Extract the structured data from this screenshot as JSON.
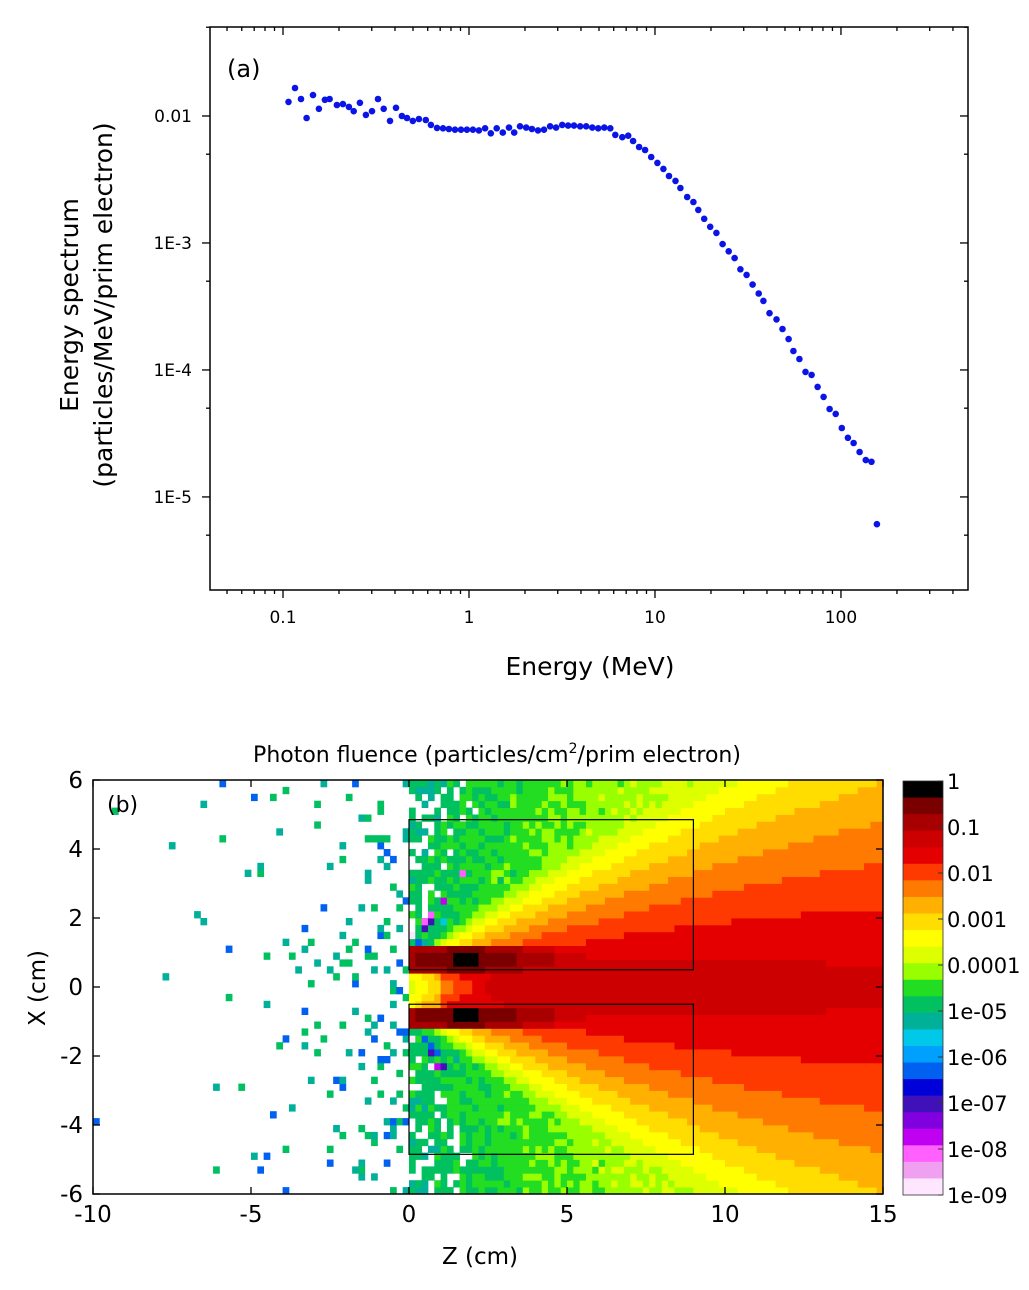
{
  "chart_data": [
    {
      "type": "scatter",
      "panel_label": "(a)",
      "xlabel": "Energy (MeV)",
      "ylabel_line1": "Energy spectrum",
      "ylabel_line2": "(particles/MeV/prim electron)",
      "xscale": "log",
      "yscale": "log",
      "xlim": [
        0.0405,
        482
      ],
      "ylim": [
        1.85e-06,
        0.0502
      ],
      "grid": false,
      "marker_color": "#0a14e6",
      "xticks": [
        {
          "value": 0.1,
          "label": "0.1"
        },
        {
          "value": 1,
          "label": "1"
        },
        {
          "value": 10,
          "label": "10"
        },
        {
          "value": 100,
          "label": "100"
        }
      ],
      "yticks": [
        {
          "value": 0.01,
          "label": "0.01"
        },
        {
          "value": 0.001,
          "label": "1E-3"
        },
        {
          "value": 0.0001,
          "label": "1E-4"
        },
        {
          "value": 1e-05,
          "label": "1E-5"
        }
      ],
      "points": [
        [
          0.107,
          0.0129
        ],
        [
          0.116,
          0.0166
        ],
        [
          0.125,
          0.0136
        ],
        [
          0.134,
          0.00964
        ],
        [
          0.145,
          0.0146
        ],
        [
          0.156,
          0.0114
        ],
        [
          0.168,
          0.0134
        ],
        [
          0.178,
          0.0136
        ],
        [
          0.195,
          0.0122
        ],
        [
          0.21,
          0.0124
        ],
        [
          0.226,
          0.0118
        ],
        [
          0.24,
          0.0109
        ],
        [
          0.259,
          0.0127
        ],
        [
          0.279,
          0.0102
        ],
        [
          0.301,
          0.0109
        ],
        [
          0.324,
          0.0136
        ],
        [
          0.348,
          0.0114
        ],
        [
          0.376,
          0.00914
        ],
        [
          0.405,
          0.0116
        ],
        [
          0.436,
          0.01
        ],
        [
          0.464,
          0.00964
        ],
        [
          0.499,
          0.00914
        ],
        [
          0.538,
          0.00947
        ],
        [
          0.586,
          0.0093
        ],
        [
          0.624,
          0.0085
        ],
        [
          0.673,
          0.00805
        ],
        [
          0.725,
          0.008
        ],
        [
          0.78,
          0.0079
        ],
        [
          0.841,
          0.0078
        ],
        [
          0.906,
          0.0078
        ],
        [
          0.975,
          0.0078
        ],
        [
          1.05,
          0.0078
        ],
        [
          1.13,
          0.0077
        ],
        [
          1.22,
          0.008
        ],
        [
          1.31,
          0.0073
        ],
        [
          1.41,
          0.008
        ],
        [
          1.52,
          0.0074
        ],
        [
          1.64,
          0.0081
        ],
        [
          1.75,
          0.0074
        ],
        [
          1.88,
          0.0083
        ],
        [
          2.03,
          0.0081
        ],
        [
          2.18,
          0.0079
        ],
        [
          2.35,
          0.0077
        ],
        [
          2.53,
          0.0078
        ],
        [
          2.73,
          0.0083
        ],
        [
          2.94,
          0.0081
        ],
        [
          3.17,
          0.0085
        ],
        [
          3.41,
          0.0084
        ],
        [
          3.67,
          0.0084
        ],
        [
          3.96,
          0.0083
        ],
        [
          4.27,
          0.0083
        ],
        [
          4.6,
          0.0081
        ],
        [
          4.95,
          0.008
        ],
        [
          5.34,
          0.0081
        ],
        [
          5.75,
          0.008
        ],
        [
          6.12,
          0.0071
        ],
        [
          6.67,
          0.0068
        ],
        [
          7.18,
          0.007
        ],
        [
          7.63,
          0.00635
        ],
        [
          8.22,
          0.0057
        ],
        [
          8.85,
          0.0054
        ],
        [
          9.54,
          0.00475
        ],
        [
          10.3,
          0.00427
        ],
        [
          11.1,
          0.00383
        ],
        [
          11.9,
          0.00337
        ],
        [
          12.9,
          0.00308
        ],
        [
          13.7,
          0.00271
        ],
        [
          14.9,
          0.0023
        ],
        [
          16.1,
          0.0021
        ],
        [
          17.1,
          0.00182
        ],
        [
          18.4,
          0.00155
        ],
        [
          19.8,
          0.00134
        ],
        [
          21.4,
          0.0012
        ],
        [
          23.1,
          0.00098
        ],
        [
          24.9,
          0.00086
        ],
        [
          26.8,
          0.00076
        ],
        [
          28.8,
          0.00062
        ],
        [
          31.1,
          0.00056
        ],
        [
          33.5,
          0.00047
        ],
        [
          36.1,
          0.0004
        ],
        [
          38.3,
          0.00035
        ],
        [
          41.3,
          0.00028
        ],
        [
          45.0,
          0.00025
        ],
        [
          48.5,
          0.00021
        ],
        [
          52.3,
          0.000175
        ],
        [
          55.5,
          0.000141
        ],
        [
          59.8,
          0.000122
        ],
        [
          64.5,
          9.65e-05
        ],
        [
          69.5,
          9.14e-05
        ],
        [
          74.9,
          7.35e-05
        ],
        [
          80.7,
          6.13e-05
        ],
        [
          86.9,
          4.93e-05
        ],
        [
          93.7,
          4.51e-05
        ],
        [
          101,
          3.49e-05
        ],
        [
          109,
          2.92e-05
        ],
        [
          117,
          2.66e-05
        ],
        [
          126,
          2.26e-05
        ],
        [
          136,
          1.95e-05
        ],
        [
          146,
          1.89e-05
        ],
        [
          156,
          6.1e-06
        ]
      ]
    },
    {
      "type": "heatmap",
      "panel_label": "(b)",
      "title_main": "Photon fluence (particles/cm",
      "title_sup": "2",
      "title_end": "/prim electron)",
      "xlabel": "Z (cm)",
      "ylabel": "X (cm)",
      "xlim": [
        -10,
        15
      ],
      "ylim": [
        -6,
        6
      ],
      "xticks": [
        {
          "value": -10,
          "label": "-10"
        },
        {
          "value": -5,
          "label": "-5"
        },
        {
          "value": 0,
          "label": "0"
        },
        {
          "value": 5,
          "label": "5"
        },
        {
          "value": 10,
          "label": "10"
        },
        {
          "value": 15,
          "label": "15"
        }
      ],
      "yticks": [
        {
          "value": 6,
          "label": "6"
        },
        {
          "value": 4,
          "label": "4"
        },
        {
          "value": 2,
          "label": "2"
        },
        {
          "value": 0,
          "label": "0"
        },
        {
          "value": -2,
          "label": "-2"
        },
        {
          "value": -4,
          "label": "-4"
        },
        {
          "value": -6,
          "label": "-6"
        }
      ],
      "color_scale": "log",
      "colorbar_range": [
        1e-09,
        1
      ],
      "colorbar_ticks": [
        {
          "value": 1,
          "label": "1"
        },
        {
          "value": 0.1,
          "label": "0.1"
        },
        {
          "value": 0.01,
          "label": "0.01"
        },
        {
          "value": 0.001,
          "label": "0.001"
        },
        {
          "value": 0.0001,
          "label": "0.0001"
        },
        {
          "value": 1e-05,
          "label": "1e-05"
        },
        {
          "value": 1e-06,
          "label": "1e-06"
        },
        {
          "value": 1e-07,
          "label": "1e-07"
        },
        {
          "value": 1e-08,
          "label": "1e-08"
        },
        {
          "value": 1e-09,
          "label": "1e-09"
        }
      ],
      "colorbar_colors": [
        "#000000",
        "#7a0000",
        "#a80000",
        "#cc0000",
        "#e40000",
        "#ff3a00",
        "#ff7a00",
        "#ffb000",
        "#ffdd00",
        "#ffff00",
        "#ddff00",
        "#99ff00",
        "#22dd22",
        "#00c060",
        "#00b098",
        "#00c8e8",
        "#00a0ff",
        "#0060f0",
        "#0000d8",
        "#4010b8",
        "#8000e0",
        "#c000f0",
        "#ff60ff",
        "#f0a0f0",
        "#ffe6ff",
        "#ffffff"
      ],
      "regions": [
        {
          "z": [
            0,
            9
          ],
          "x": [
            0.5,
            4.85
          ]
        },
        {
          "z": [
            0,
            9
          ],
          "x": [
            -4.85,
            -0.5
          ]
        }
      ]
    }
  ]
}
